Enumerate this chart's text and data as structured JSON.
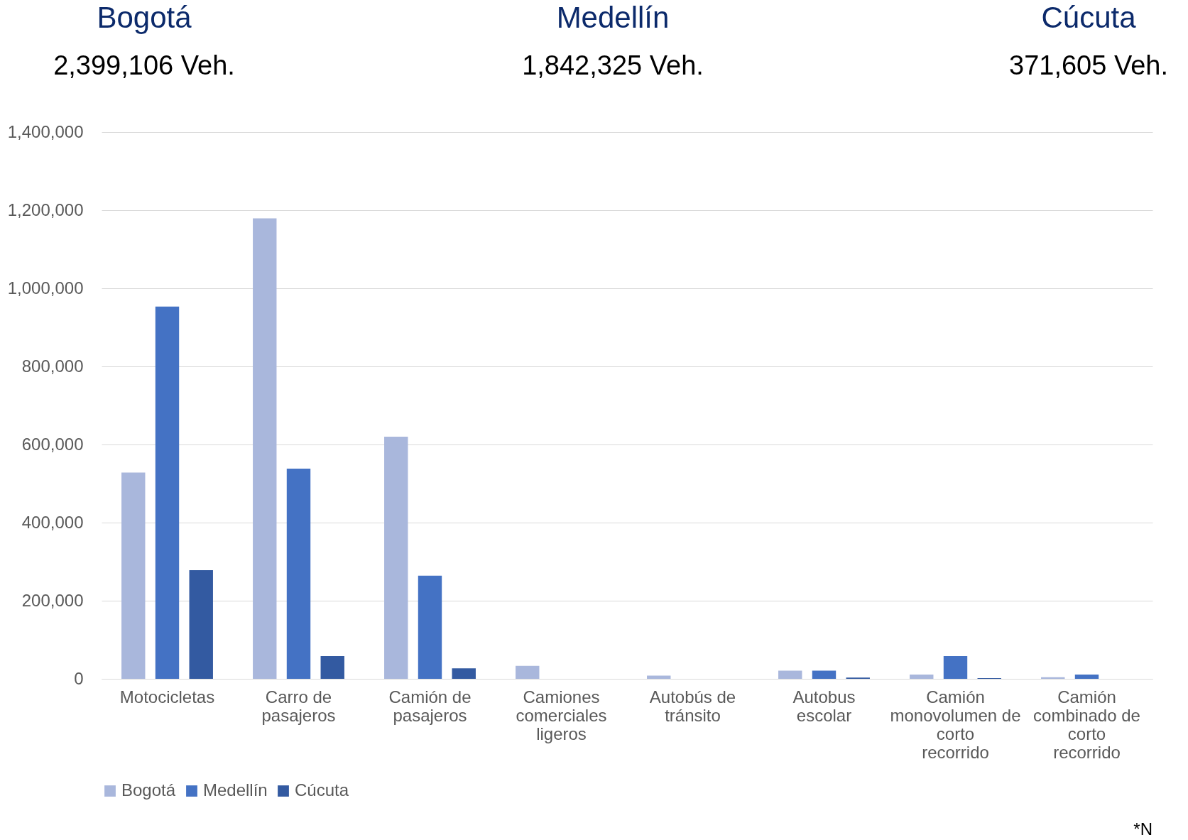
{
  "chart_data": {
    "type": "bar",
    "categories": [
      "Motocicletas",
      "Carro de pasajeros",
      "Camión de pasajeros",
      "Camiones comerciales ligeros",
      "Autobús de tránsito",
      "Autobus escolar",
      "Camión monovolumen de corto recorrido",
      "Camión combinado de corto recorrido"
    ],
    "series": [
      {
        "name": "Bogotá",
        "color": "#a9b7dc",
        "values": [
          528000,
          1179000,
          620000,
          33000,
          8000,
          21000,
          11000,
          4000
        ]
      },
      {
        "name": "Medellín",
        "color": "#4472c4",
        "values": [
          953000,
          538000,
          264000,
          0,
          0,
          21000,
          58000,
          11000
        ]
      },
      {
        "name": "Cúcuta",
        "color": "#335aa1",
        "values": [
          278000,
          58000,
          27000,
          0,
          0,
          3000,
          2000,
          0
        ]
      }
    ],
    "ylim": [
      0,
      1400000
    ],
    "yticks": [
      {
        "value": 0,
        "label": "0"
      },
      {
        "value": 200000,
        "label": "200,000"
      },
      {
        "value": 400000,
        "label": "400,000"
      },
      {
        "value": 600000,
        "label": "600,000"
      },
      {
        "value": 800000,
        "label": "800,000"
      },
      {
        "value": 1000000,
        "label": "1,000,000"
      },
      {
        "value": 1200000,
        "label": "1,200,000"
      },
      {
        "value": 1400000,
        "label": "1,400,000"
      }
    ],
    "grid": "y",
    "legend": "bottom",
    "annotations": [
      "Bogotá",
      "2,399,106 Veh.",
      "Medellín",
      "1,842,325 Veh.",
      "Cúcuta",
      "371,605 Veh.",
      "*N"
    ]
  }
}
